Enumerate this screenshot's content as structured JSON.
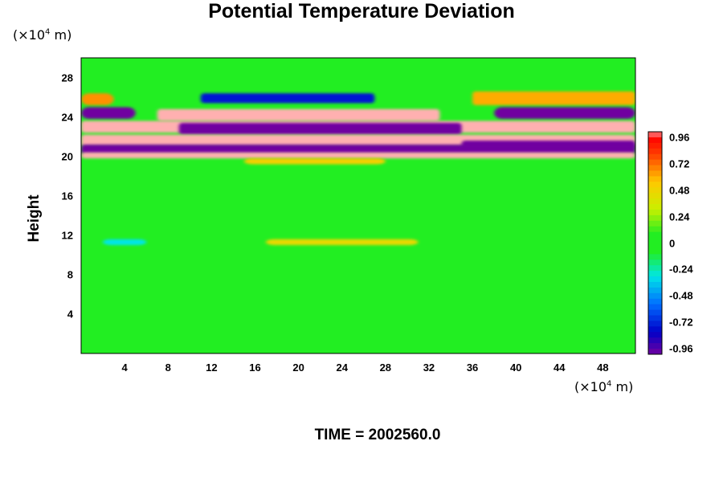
{
  "chart_data": {
    "type": "heatmap",
    "title": "Potential Temperature Deviation",
    "ylabel": "Height",
    "xlabel": "",
    "y_unit": "(×10",
    "x_unit": "(×10",
    "unit_exponent": "4",
    "unit_suffix": " m)",
    "x_ticks": [
      4,
      8,
      12,
      16,
      20,
      24,
      28,
      32,
      36,
      40,
      44,
      48
    ],
    "y_ticks": [
      4,
      8,
      12,
      16,
      20,
      24,
      28
    ],
    "xlim": [
      0,
      51
    ],
    "ylim": [
      0,
      30
    ],
    "colorbar": {
      "range": [
        -1.0,
        1.0
      ],
      "tick_values": [
        0.96,
        0.72,
        0.48,
        0.24,
        0,
        -0.24,
        -0.48,
        -0.72,
        -0.96
      ],
      "tick_labels": [
        "0.96",
        "0.72",
        "0.48",
        "0.24",
        "0",
        "-0.24",
        "-0.48",
        "-0.72",
        "-0.96"
      ]
    },
    "bands": [
      {
        "y_from": 25.2,
        "y_to": 26.4,
        "x_from": 0,
        "x_to": 3,
        "value": 0.65
      },
      {
        "y_from": 25.2,
        "y_to": 26.6,
        "x_from": 36,
        "x_to": 51,
        "value": 0.6
      },
      {
        "y_from": 25.4,
        "y_to": 26.4,
        "x_from": 11,
        "x_to": 27,
        "value": -0.75
      },
      {
        "y_from": 23.8,
        "y_to": 25.0,
        "x_from": 0,
        "x_to": 5,
        "value": -1.0
      },
      {
        "y_from": 23.8,
        "y_to": 25.0,
        "x_from": 38,
        "x_to": 51,
        "value": -1.0
      },
      {
        "y_from": 23.6,
        "y_to": 24.8,
        "x_from": 7,
        "x_to": 33,
        "value": 1.0
      },
      {
        "y_from": 22.4,
        "y_to": 23.6,
        "x_from": 0,
        "x_to": 51,
        "value": 1.0
      },
      {
        "y_from": 22.2,
        "y_to": 23.4,
        "x_from": 9,
        "x_to": 35,
        "value": -1.0
      },
      {
        "y_from": 21.0,
        "y_to": 22.2,
        "x_from": 0,
        "x_to": 51,
        "value": 1.0
      },
      {
        "y_from": 20.2,
        "y_to": 21.2,
        "x_from": 0,
        "x_to": 51,
        "value": -1.0
      },
      {
        "y_from": 19.8,
        "y_to": 20.4,
        "x_from": 0,
        "x_to": 51,
        "value": 1.0
      },
      {
        "y_from": 20.8,
        "y_to": 21.6,
        "x_from": 35,
        "x_to": 51,
        "value": -1.0
      },
      {
        "y_from": 19.2,
        "y_to": 19.8,
        "x_from": 15,
        "x_to": 28,
        "value": 0.5
      },
      {
        "y_from": 11.0,
        "y_to": 11.6,
        "x_from": 17,
        "x_to": 31,
        "value": 0.45
      },
      {
        "y_from": 11.0,
        "y_to": 11.6,
        "x_from": 2,
        "x_to": 6,
        "value": -0.3
      }
    ],
    "time_label": "TIME = 2002560.0"
  }
}
